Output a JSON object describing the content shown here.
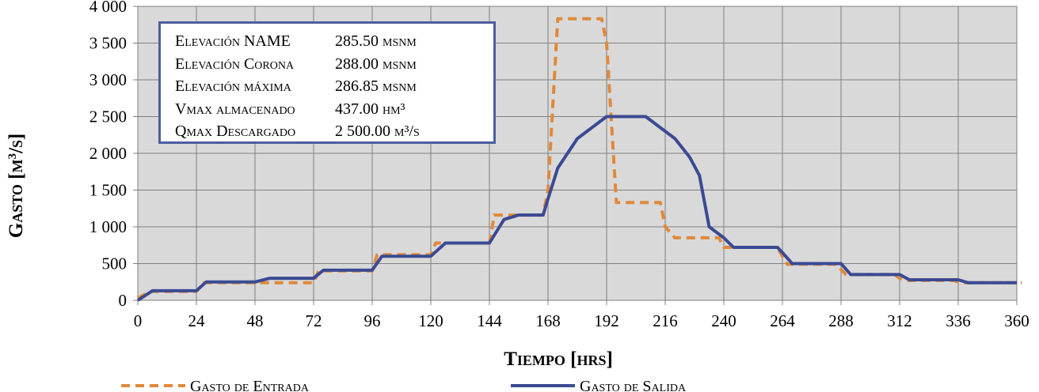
{
  "chart_data": {
    "type": "line",
    "ylabel_main": "Gasto [m",
    "ylabel_sup": "3",
    "ylabel_tail": "/s]",
    "xlabel": "Tiempo [hrs]",
    "xlim": [
      0,
      360
    ],
    "ylim": [
      0,
      4000
    ],
    "xticks": [
      0,
      24,
      48,
      72,
      96,
      120,
      144,
      168,
      192,
      216,
      240,
      264,
      288,
      312,
      336,
      360
    ],
    "yticks": [
      0,
      500,
      1000,
      1500,
      2000,
      2500,
      3000,
      3500,
      4000
    ],
    "ytick_labels": [
      "0",
      "500",
      "1 000",
      "1 500",
      "2 000",
      "2 500",
      "3 000",
      "3 500",
      "4 000"
    ],
    "grid": true,
    "legend_position": "bottom",
    "series": [
      {
        "name": "Gasto de Entrada",
        "color": "#e0893a",
        "style": "dashed",
        "x": [
          0,
          5,
          24,
          27,
          72,
          74,
          96,
          98,
          120,
          122,
          144,
          146,
          166,
          168,
          172,
          190,
          192,
          196,
          214,
          216,
          220,
          236,
          238,
          240,
          262,
          264,
          266,
          286,
          288,
          290,
          310,
          312,
          314,
          334,
          336,
          338,
          358,
          362
        ],
        "y": [
          30,
          120,
          120,
          240,
          240,
          400,
          400,
          620,
          620,
          780,
          780,
          1160,
          1160,
          1500,
          3830,
          3830,
          3500,
          1330,
          1330,
          1000,
          850,
          850,
          850,
          720,
          720,
          600,
          490,
          490,
          420,
          350,
          350,
          300,
          270,
          270,
          250,
          240,
          240,
          240
        ]
      },
      {
        "name": "Gasto de Salida",
        "color": "#3a4a93",
        "style": "solid",
        "x": [
          0,
          6,
          24,
          28,
          48,
          54,
          72,
          76,
          96,
          100,
          120,
          126,
          144,
          150,
          156,
          166,
          168,
          172,
          180,
          192,
          196,
          200,
          208,
          220,
          226,
          230,
          234,
          240,
          244,
          262,
          264,
          268,
          288,
          292,
          312,
          316,
          336,
          340,
          360
        ],
        "y": [
          0,
          130,
          130,
          250,
          250,
          300,
          300,
          410,
          410,
          600,
          600,
          780,
          780,
          1100,
          1160,
          1160,
          1380,
          1800,
          2200,
          2500,
          2500,
          2500,
          2500,
          2200,
          1950,
          1700,
          1000,
          850,
          720,
          720,
          650,
          500,
          500,
          350,
          350,
          280,
          280,
          240,
          240
        ]
      }
    ]
  },
  "info_box": {
    "lines": [
      {
        "label": "Elevación NAME",
        "value": "285.50 msnm"
      },
      {
        "label": "Elevación Corona",
        "value": "288.00 msnm"
      },
      {
        "label": "Elevación máxima",
        "value": "286.85 msnm"
      },
      {
        "label": "Vmax almacenado",
        "value": "437.00 hm³"
      },
      {
        "label": "Qmax Descargado",
        "value": "2 500.00 m³/s"
      }
    ]
  }
}
